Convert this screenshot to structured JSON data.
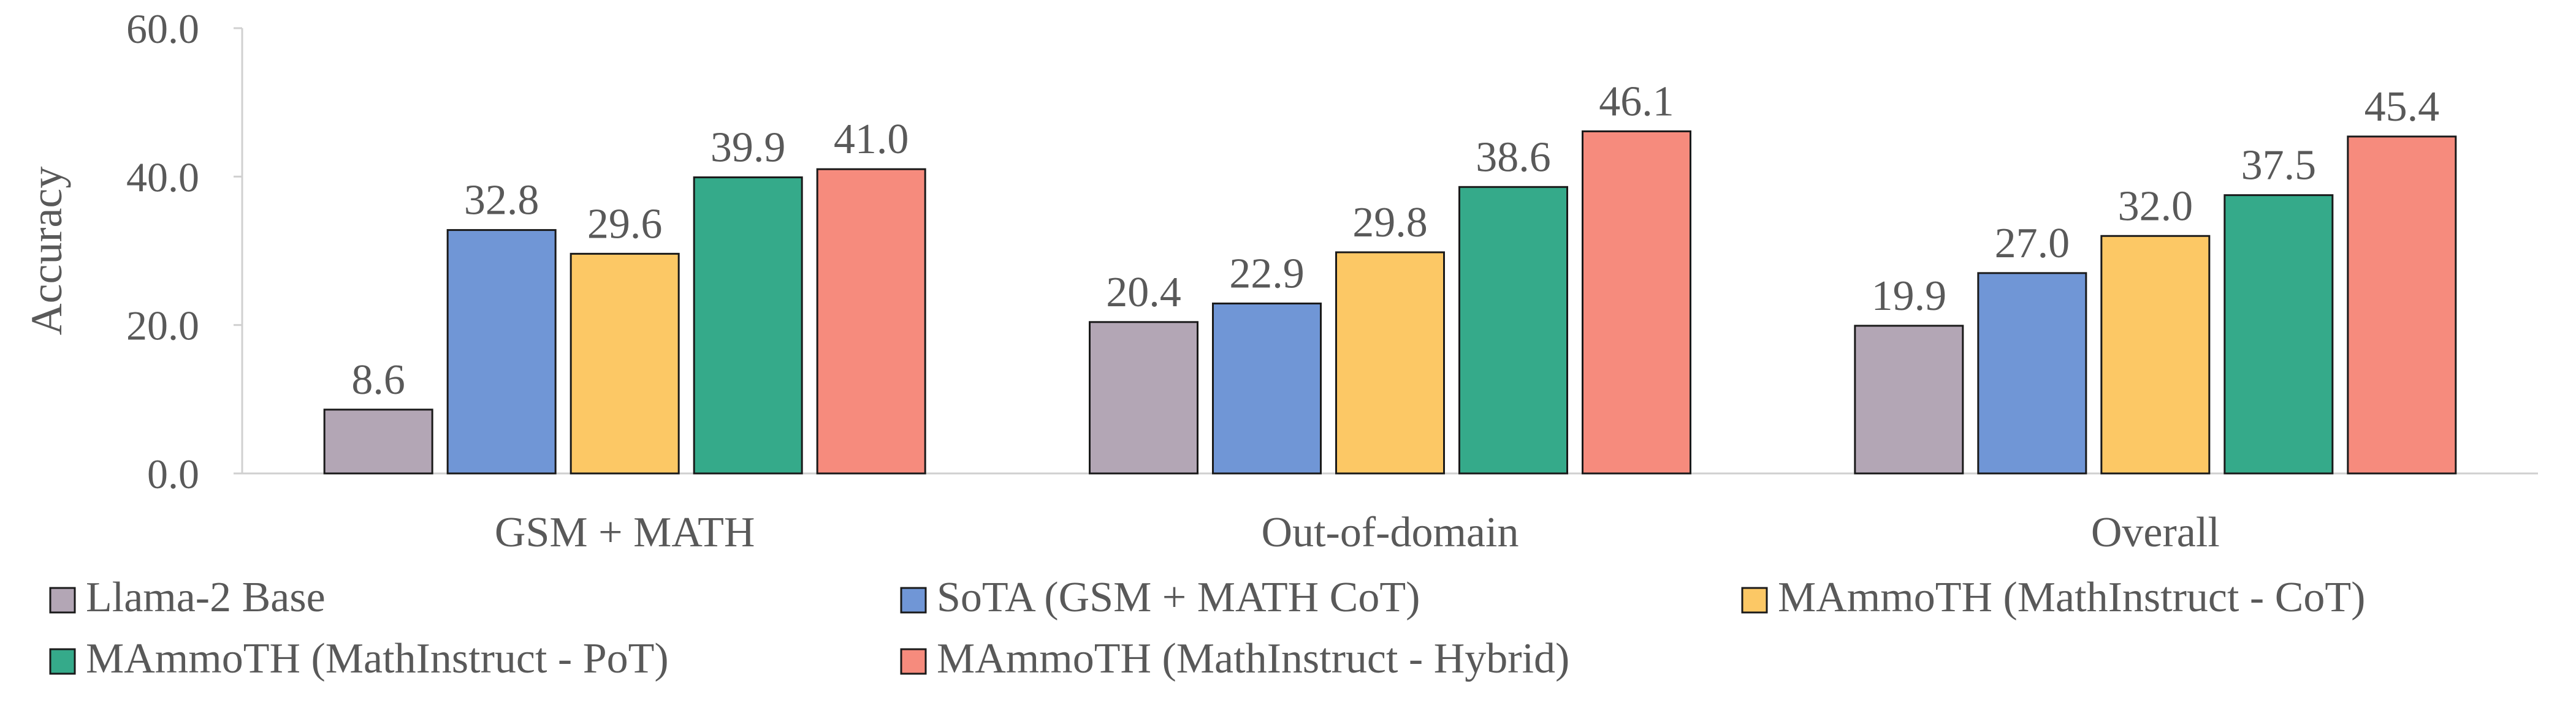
{
  "chart_data": {
    "type": "bar",
    "ylabel": "Accuracy",
    "ylim": [
      0,
      60
    ],
    "yticks": [
      "0.0",
      "20.0",
      "40.0",
      "60.0"
    ],
    "grid": false,
    "legend_position": "bottom",
    "categories": [
      "GSM + MATH",
      "Out-of-domain",
      "Overall"
    ],
    "series": [
      {
        "name": "Llama-2 Base",
        "color": "#b3a6b5",
        "values": [
          8.6,
          20.4,
          19.9
        ],
        "labels": [
          "8.6",
          "20.4",
          "19.9"
        ]
      },
      {
        "name": "SoTA (GSM + MATH CoT)",
        "color": "#7096d6",
        "values": [
          32.8,
          22.9,
          27.0
        ],
        "labels": [
          "32.8",
          "22.9",
          "27.0"
        ]
      },
      {
        "name": "MAmmoTH (MathInstruct - CoT)",
        "color": "#fcc865",
        "values": [
          29.6,
          29.8,
          32.0
        ],
        "labels": [
          "29.6",
          "29.8",
          "32.0"
        ]
      },
      {
        "name": "MAmmoTH (MathInstruct - PoT)",
        "color": "#35aa8a",
        "values": [
          39.9,
          38.6,
          37.5
        ],
        "labels": [
          "39.9",
          "38.6",
          "37.5"
        ]
      },
      {
        "name": "MAmmoTH (MathInstruct - Hybrid)",
        "color": "#f68b7d",
        "values": [
          41.0,
          46.1,
          45.4
        ],
        "labels": [
          "41.0",
          "46.1",
          "45.4"
        ]
      }
    ]
  }
}
